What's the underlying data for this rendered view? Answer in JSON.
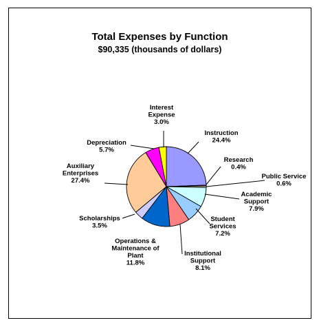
{
  "chart_data": {
    "type": "pie",
    "title": "Total Expenses by Function",
    "subtitle": "$90,335 (thousands of dollars)",
    "slices": [
      {
        "name": "Instruction",
        "percent": 24.4,
        "color": "#9999FF",
        "label_lines": [
          "Instruction",
          "24.4%"
        ]
      },
      {
        "name": "Research",
        "percent": 0.4,
        "color": "#993366",
        "label_lines": [
          "Research",
          "0.4%"
        ]
      },
      {
        "name": "Public Service",
        "percent": 0.6,
        "color": "#FFFFCC",
        "label_lines": [
          "Public Service",
          "0.6%"
        ]
      },
      {
        "name": "Academic Support",
        "percent": 7.9,
        "color": "#CCFFFF",
        "label_lines": [
          "Academic",
          "Support",
          "7.9%"
        ]
      },
      {
        "name": "Student Services",
        "percent": 7.2,
        "color": "#99CCFF",
        "label_lines": [
          "Student",
          "Services",
          "7.2%"
        ]
      },
      {
        "name": "Institutional Support",
        "percent": 8.1,
        "color": "#FF8080",
        "label_lines": [
          "Institutional",
          "Support",
          "8.1%"
        ]
      },
      {
        "name": "Operations & Maintenance of Plant",
        "percent": 11.8,
        "color": "#0066CC",
        "label_lines": [
          "Operations &",
          "Maintenance of",
          "Plant",
          "11.8%"
        ]
      },
      {
        "name": "Scholarships",
        "percent": 3.5,
        "color": "#CCCCFF",
        "label_lines": [
          "Scholarships",
          "3.5%"
        ]
      },
      {
        "name": "Auxiliary Enterprises",
        "percent": 27.4,
        "color": "#FFCC99",
        "label_lines": [
          "Auxiliary",
          "Enterprises",
          "27.4%"
        ]
      },
      {
        "name": "Depreciation",
        "percent": 5.7,
        "color": "#FF00FF",
        "label_lines": [
          "Depreciation",
          "5.7%"
        ]
      },
      {
        "name": "Interest Expense",
        "percent": 3.0,
        "color": "#FFFF00",
        "label_lines": [
          "Interest",
          "Expense",
          "3.0%"
        ]
      }
    ]
  }
}
